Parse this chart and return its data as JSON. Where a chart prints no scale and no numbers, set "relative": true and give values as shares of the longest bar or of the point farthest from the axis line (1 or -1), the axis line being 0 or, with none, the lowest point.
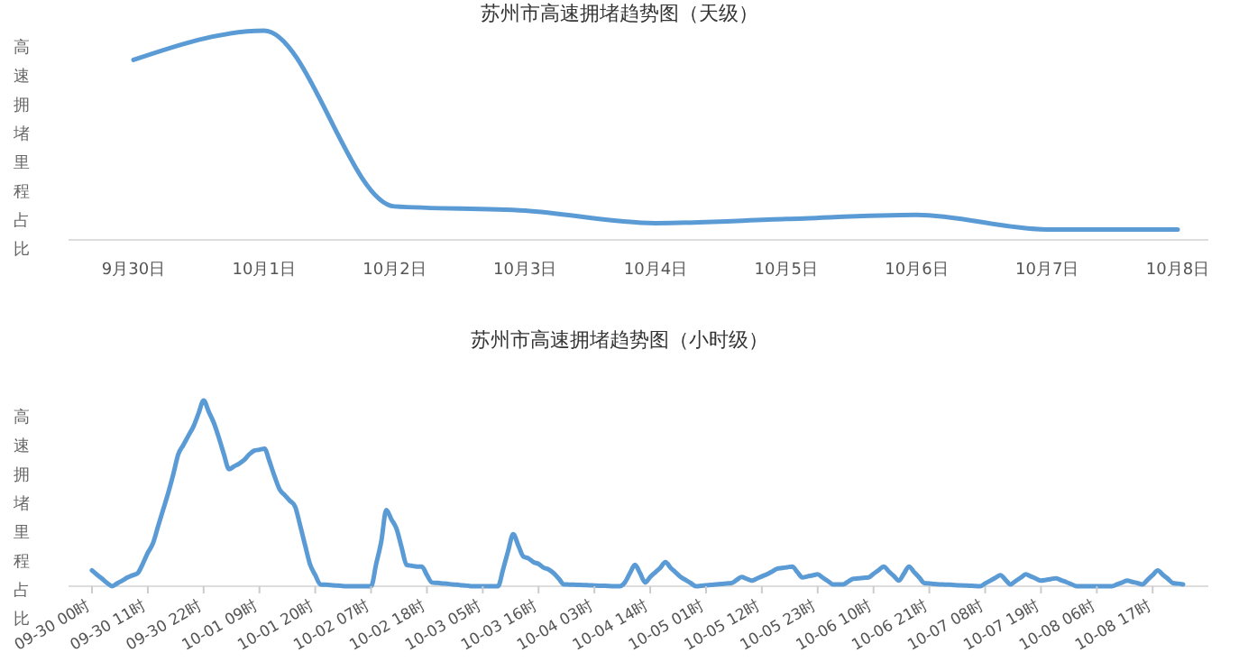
{
  "chart_data": [
    {
      "type": "line",
      "title": "苏州市高速拥堵趋势图（天级）",
      "ylabel": "高速拥堵里程占比",
      "relative": true,
      "categories": [
        "9月30日",
        "10月1日",
        "10月2日",
        "10月3日",
        "10月4日",
        "10月5日",
        "10月6日",
        "10月7日",
        "10月8日"
      ],
      "series": [
        {
          "color": "#5b9bd5",
          "values": [
            0.86,
            1,
            0.16,
            0.14,
            0.08,
            0.1,
            0.12,
            0.05,
            0.05
          ]
        }
      ],
      "grid": false,
      "marker": "none"
    },
    {
      "type": "line",
      "title": "苏州市高速拥堵趋势图（小时级）",
      "ylabel": "高速拥堵里程占比",
      "relative": true,
      "categories": [
        "09-30 00时",
        null,
        null,
        null,
        null,
        null,
        null,
        null,
        null,
        null,
        null,
        "09-30 11时",
        null,
        null,
        null,
        null,
        null,
        null,
        null,
        null,
        null,
        null,
        "09-30 22时",
        null,
        null,
        null,
        null,
        null,
        null,
        null,
        null,
        null,
        null,
        "10-01 09时",
        null,
        null,
        null,
        null,
        null,
        null,
        null,
        null,
        null,
        null,
        "10-01 20时",
        null,
        null,
        null,
        null,
        null,
        null,
        null,
        null,
        null,
        null,
        "10-02 07时",
        null,
        null,
        null,
        null,
        null,
        null,
        null,
        null,
        null,
        null,
        "10-02 18时",
        null,
        null,
        null,
        null,
        null,
        null,
        null,
        null,
        null,
        null,
        "10-03 05时",
        null,
        null,
        null,
        null,
        null,
        null,
        null,
        null,
        null,
        null,
        "10-03 16时",
        null,
        null,
        null,
        null,
        null,
        null,
        null,
        null,
        null,
        null,
        "10-04 03时",
        null,
        null,
        null,
        null,
        null,
        null,
        null,
        null,
        null,
        null,
        "10-04 14时",
        null,
        null,
        null,
        null,
        null,
        null,
        null,
        null,
        null,
        null,
        "10-05 01时",
        null,
        null,
        null,
        null,
        null,
        null,
        null,
        null,
        null,
        null,
        "10-05 12时",
        null,
        null,
        null,
        null,
        null,
        null,
        null,
        null,
        null,
        null,
        "10-05 23时",
        null,
        null,
        null,
        null,
        null,
        null,
        null,
        null,
        null,
        null,
        "10-06 10时",
        null,
        null,
        null,
        null,
        null,
        null,
        null,
        null,
        null,
        null,
        "10-06 21时",
        null,
        null,
        null,
        null,
        null,
        null,
        null,
        null,
        null,
        null,
        "10-07 08时",
        null,
        null,
        null,
        null,
        null,
        null,
        null,
        null,
        null,
        null,
        "10-07 19时",
        null,
        null,
        null,
        null,
        null,
        null,
        null,
        null,
        null,
        null,
        "10-08 06时",
        null,
        null,
        null,
        null,
        null,
        null,
        null,
        null,
        null,
        null,
        "10-08 17时",
        null,
        null,
        null,
        null,
        null,
        null
      ],
      "series": [
        {
          "color": "#5b9bd5",
          "values": [
            0.085,
            0.062,
            0.04,
            0.017,
            0,
            0.016,
            0.031,
            0.047,
            0.059,
            0.07,
            0.12,
            0.18,
            0.23,
            0.32,
            0.41,
            0.5,
            0.6,
            0.71,
            0.76,
            0.81,
            0.86,
            0.93,
            1,
            0.94,
            0.88,
            0.8,
            0.71,
            0.63,
            0.645,
            0.66,
            0.68,
            0.71,
            0.73,
            0.735,
            0.74,
            0.67,
            0.59,
            0.52,
            0.49,
            0.46,
            0.43,
            0.33,
            0.22,
            0.115,
            0.06,
            0.01,
            0.008,
            0.006,
            0.004,
            0.002,
            0,
            0,
            0,
            0,
            0,
            0,
            0.12,
            0.24,
            0.41,
            0.36,
            0.31,
            0.21,
            0.115,
            0.11,
            0.106,
            0.106,
            0.06,
            0.02,
            0.018,
            0.015,
            0.013,
            0.01,
            0.008,
            0.005,
            0.003,
            0,
            0,
            0,
            0,
            0,
            0,
            0.09,
            0.19,
            0.28,
            0.22,
            0.16,
            0.15,
            0.13,
            0.12,
            0.1,
            0.09,
            0.07,
            0.04,
            0.01,
            0.009,
            0.008,
            0.007,
            0.006,
            0.005,
            0.004,
            0.003,
            0.002,
            0.001,
            0,
            0,
            0.02,
            0.07,
            0.115,
            0.07,
            0.02,
            0.05,
            0.075,
            0.1,
            0.13,
            0.1,
            0.075,
            0.05,
            0.033,
            0.017,
            0,
            0.002,
            0.005,
            0.007,
            0.01,
            0.012,
            0.015,
            0.017,
            0.033,
            0.05,
            0.04,
            0.03,
            0.041,
            0.053,
            0.064,
            0.079,
            0.094,
            0.098,
            0.102,
            0.106,
            0.076,
            0.047,
            0.053,
            0.058,
            0.064,
            0.046,
            0.028,
            0.01,
            0.01,
            0.01,
            0.025,
            0.04,
            0.042,
            0.045,
            0.047,
            0.067,
            0.086,
            0.106,
            0.08,
            0.055,
            0.03,
            0.068,
            0.106,
            0.076,
            0.047,
            0.017,
            0.015,
            0.012,
            0.01,
            0.009,
            0.008,
            0.006,
            0.005,
            0.004,
            0.003,
            0.001,
            0,
            0.015,
            0.03,
            0.045,
            0.06,
            0.035,
            0.01,
            0.028,
            0.046,
            0.064,
            0.053,
            0.041,
            0.03,
            0.034,
            0.039,
            0.043,
            0.032,
            0.022,
            0.011,
            0,
            0,
            0,
            0,
            0,
            0,
            0,
            0,
            0.01,
            0.02,
            0.03,
            0.023,
            0.017,
            0.01,
            0.035,
            0.06,
            0.085,
            0.062,
            0.04,
            0.017,
            0.014,
            0.01
          ]
        }
      ],
      "grid": false,
      "marker": "none"
    }
  ]
}
